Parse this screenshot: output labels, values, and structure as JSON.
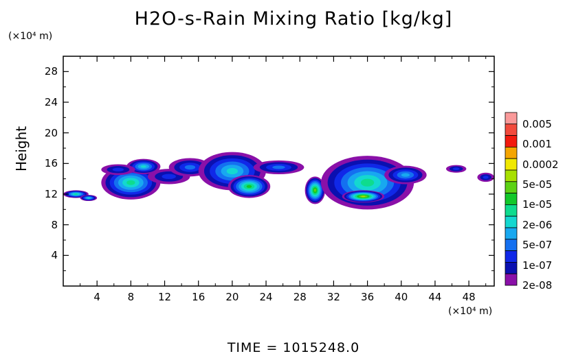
{
  "chart_data": {
    "type": "heatmap",
    "title": "H2O-s-Rain Mixing Ratio [kg/kg]",
    "ylabel": "Height",
    "y_unit": "(×10⁴ m)",
    "x_unit": "(×10⁴ m)",
    "xlim": [
      0,
      51
    ],
    "ylim": [
      0,
      30
    ],
    "x_ticks": [
      4,
      8,
      12,
      16,
      20,
      24,
      28,
      32,
      36,
      40,
      44,
      48
    ],
    "y_ticks": [
      4,
      8,
      12,
      16,
      20,
      24,
      28
    ],
    "footer": "TIME = 1015248.0",
    "legend": {
      "labels": [
        "0.005",
        "0.001",
        "0.0002",
        "5e-05",
        "1e-05",
        "2e-06",
        "5e-07",
        "1e-07",
        "2e-08"
      ],
      "colors": [
        "#fa9a9a",
        "#f24a3c",
        "#f21a0e",
        "#f5a500",
        "#f0e800",
        "#a8e000",
        "#5cd214",
        "#12c82a",
        "#0edc8e",
        "#14d8d0",
        "#18a8f0",
        "#1470f0",
        "#1028e8",
        "#0a10b0",
        "#8a10a8"
      ]
    },
    "clouds": [
      {
        "x": 1.5,
        "y": 12.0,
        "rx": 1.5,
        "ry": 0.5,
        "level": 6
      },
      {
        "x": 3.0,
        "y": 11.5,
        "rx": 1.0,
        "ry": 0.4,
        "level": 5
      },
      {
        "x": 8.0,
        "y": 13.5,
        "rx": 3.5,
        "ry": 2.2,
        "level": 6
      },
      {
        "x": 9.5,
        "y": 15.6,
        "rx": 2.0,
        "ry": 1.0,
        "level": 5
      },
      {
        "x": 6.5,
        "y": 15.2,
        "rx": 2.0,
        "ry": 0.7,
        "level": 2
      },
      {
        "x": 12.5,
        "y": 14.3,
        "rx": 2.5,
        "ry": 1.0,
        "level": 2
      },
      {
        "x": 15.0,
        "y": 15.5,
        "rx": 2.5,
        "ry": 1.2,
        "level": 3
      },
      {
        "x": 20.0,
        "y": 15.0,
        "rx": 4.0,
        "ry": 2.5,
        "level": 5
      },
      {
        "x": 22.0,
        "y": 13.0,
        "rx": 2.5,
        "ry": 1.5,
        "level": 7
      },
      {
        "x": 25.5,
        "y": 15.5,
        "rx": 3.0,
        "ry": 0.9,
        "level": 3
      },
      {
        "x": 29.8,
        "y": 12.5,
        "rx": 1.2,
        "ry": 1.8,
        "level": 8
      },
      {
        "x": 36.0,
        "y": 13.5,
        "rx": 5.5,
        "ry": 3.5,
        "level": 6
      },
      {
        "x": 35.5,
        "y": 11.7,
        "rx": 2.5,
        "ry": 0.8,
        "level": 9
      },
      {
        "x": 40.5,
        "y": 14.5,
        "rx": 2.5,
        "ry": 1.2,
        "level": 4
      },
      {
        "x": 46.5,
        "y": 15.3,
        "rx": 1.2,
        "ry": 0.5,
        "level": 2
      },
      {
        "x": 50.0,
        "y": 14.2,
        "rx": 1.0,
        "ry": 0.6,
        "level": 2
      }
    ]
  }
}
